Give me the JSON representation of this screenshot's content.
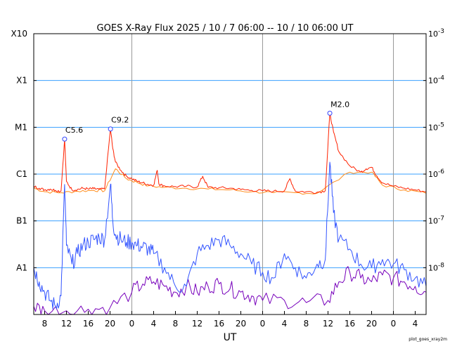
{
  "chart_data": {
    "type": "line",
    "title": "GOES X-Ray Flux   2025 / 10 /  7   06:00 -- 10 / 10   06:00   UT",
    "xlabel": "UT",
    "credit": "plot_goes_xray2m",
    "x_start": "2025-10-07T06:00",
    "x_end": "2025-10-10T06:00",
    "x_ticks": [
      {
        "label": "8",
        "t": "2025-10-07T08:00"
      },
      {
        "label": "12",
        "t": "2025-10-07T12:00"
      },
      {
        "label": "16",
        "t": "2025-10-07T16:00"
      },
      {
        "label": "20",
        "t": "2025-10-07T20:00"
      },
      {
        "label": "0",
        "t": "2025-10-08T00:00"
      },
      {
        "label": "4",
        "t": "2025-10-08T04:00"
      },
      {
        "label": "8",
        "t": "2025-10-08T08:00"
      },
      {
        "label": "12",
        "t": "2025-10-08T12:00"
      },
      {
        "label": "16",
        "t": "2025-10-08T16:00"
      },
      {
        "label": "20",
        "t": "2025-10-08T20:00"
      },
      {
        "label": "0",
        "t": "2025-10-09T00:00"
      },
      {
        "label": "4",
        "t": "2025-10-09T04:00"
      },
      {
        "label": "8",
        "t": "2025-10-09T08:00"
      },
      {
        "label": "12",
        "t": "2025-10-09T12:00"
      },
      {
        "label": "16",
        "t": "2025-10-09T16:00"
      },
      {
        "label": "20",
        "t": "2025-10-09T20:00"
      },
      {
        "label": "0",
        "t": "2025-10-10T00:00"
      },
      {
        "label": "4",
        "t": "2025-10-10T04:00"
      }
    ],
    "day_boundaries": [
      "2025-10-08T00:00",
      "2025-10-09T00:00",
      "2025-10-10T00:00"
    ],
    "y_scale": "log",
    "ylim": [
      1e-09,
      0.001
    ],
    "y_class_ticks": [
      {
        "label": "X10",
        "value": 0.001
      },
      {
        "label": "X1",
        "value": 0.0001
      },
      {
        "label": "M1",
        "value": 1e-05
      },
      {
        "label": "C1",
        "value": 1e-06
      },
      {
        "label": "B1",
        "value": 1e-07
      },
      {
        "label": "A1",
        "value": 1e-08
      }
    ],
    "y_right_ticks": [
      {
        "base": "10",
        "exp": "-3",
        "value": 0.001
      },
      {
        "base": "10",
        "exp": "-4",
        "value": 0.0001
      },
      {
        "base": "10",
        "exp": "-5",
        "value": 1e-05
      },
      {
        "base": "10",
        "exp": "-6",
        "value": 1e-06
      },
      {
        "base": "10",
        "exp": "-7",
        "value": 1e-07
      },
      {
        "base": "10",
        "exp": "-8",
        "value": 1e-08
      }
    ],
    "colors": {
      "long_primary": "#ff2200",
      "long_secondary": "#ff8c1a",
      "short_primary": "#3355ff",
      "short_secondary": "#7700bb",
      "hgrid": "#3aa0ff",
      "vgrid": "#999999",
      "marker": "#3344ff"
    },
    "annotations": [
      {
        "label": "C5.6",
        "t": "2025-10-07T11:40",
        "value": 5.6e-06
      },
      {
        "label": "C9.2",
        "t": "2025-10-07T20:05",
        "value": 9.2e-06
      },
      {
        "label": "M2.0",
        "t": "2025-10-09T12:20",
        "value": 2e-05
      }
    ],
    "series": [
      {
        "role": "long_primary",
        "kind": "long",
        "points": [
          [
            "2025-10-07T06:00",
            5.5e-07
          ],
          [
            "2025-10-07T07:00",
            5e-07
          ],
          [
            "2025-10-07T08:00",
            4.6e-07
          ],
          [
            "2025-10-07T09:00",
            4.8e-07
          ],
          [
            "2025-10-07T10:00",
            4.5e-07
          ],
          [
            "2025-10-07T11:00",
            4.3e-07
          ],
          [
            "2025-10-07T11:40",
            5.6e-06
          ],
          [
            "2025-10-07T12:00",
            7e-07
          ],
          [
            "2025-10-07T13:00",
            4.6e-07
          ],
          [
            "2025-10-07T14:00",
            4.7e-07
          ],
          [
            "2025-10-07T15:00",
            5e-07
          ],
          [
            "2025-10-07T16:00",
            4.8e-07
          ],
          [
            "2025-10-07T17:00",
            4.9e-07
          ],
          [
            "2025-10-07T18:00",
            4.7e-07
          ],
          [
            "2025-10-07T19:00",
            4.8e-07
          ],
          [
            "2025-10-07T20:05",
            9.2e-06
          ],
          [
            "2025-10-07T20:30",
            3.5e-06
          ],
          [
            "2025-10-07T21:00",
            1.8e-06
          ],
          [
            "2025-10-07T22:00",
            1.2e-06
          ],
          [
            "2025-10-07T23:00",
            9e-07
          ],
          [
            "2025-10-08T00:00",
            8e-07
          ],
          [
            "2025-10-08T01:00",
            7e-07
          ],
          [
            "2025-10-08T02:00",
            6.5e-07
          ],
          [
            "2025-10-08T03:00",
            6e-07
          ],
          [
            "2025-10-08T04:00",
            5.8e-07
          ],
          [
            "2025-10-08T04:40",
            1.2e-06
          ],
          [
            "2025-10-08T05:00",
            6e-07
          ],
          [
            "2025-10-08T06:00",
            5.6e-07
          ],
          [
            "2025-10-08T08:00",
            5.4e-07
          ],
          [
            "2025-10-08T10:00",
            5.5e-07
          ],
          [
            "2025-10-08T12:00",
            5.3e-07
          ],
          [
            "2025-10-08T13:00",
            9e-07
          ],
          [
            "2025-10-08T14:00",
            5.2e-07
          ],
          [
            "2025-10-08T16:00",
            5.1e-07
          ],
          [
            "2025-10-08T18:00",
            5e-07
          ],
          [
            "2025-10-08T20:00",
            4.7e-07
          ],
          [
            "2025-10-08T22:00",
            4.5e-07
          ],
          [
            "2025-10-09T00:00",
            4.4e-07
          ],
          [
            "2025-10-09T02:00",
            4.3e-07
          ],
          [
            "2025-10-09T04:00",
            4.4e-07
          ],
          [
            "2025-10-09T05:00",
            8e-07
          ],
          [
            "2025-10-09T06:00",
            4.3e-07
          ],
          [
            "2025-10-09T08:00",
            4.2e-07
          ],
          [
            "2025-10-09T10:00",
            4.1e-07
          ],
          [
            "2025-10-09T11:30",
            4.4e-07
          ],
          [
            "2025-10-09T12:20",
            2e-05
          ],
          [
            "2025-10-09T13:00",
            8e-06
          ],
          [
            "2025-10-09T14:00",
            3e-06
          ],
          [
            "2025-10-09T16:00",
            1.5e-06
          ],
          [
            "2025-10-09T18:00",
            1.1e-06
          ],
          [
            "2025-10-09T19:00",
            1.3e-06
          ],
          [
            "2025-10-09T20:00",
            1.4e-06
          ],
          [
            "2025-10-09T21:00",
            9e-07
          ],
          [
            "2025-10-09T22:00",
            6.5e-07
          ],
          [
            "2025-10-10T00:00",
            5.5e-07
          ],
          [
            "2025-10-10T02:00",
            5e-07
          ],
          [
            "2025-10-10T04:00",
            4.6e-07
          ],
          [
            "2025-10-10T06:00",
            4.2e-07
          ]
        ]
      },
      {
        "role": "long_secondary",
        "kind": "long",
        "points": [
          [
            "2025-10-07T06:00",
            5e-07
          ],
          [
            "2025-10-07T08:00",
            4.2e-07
          ],
          [
            "2025-10-07T11:00",
            4e-07
          ],
          [
            "2025-10-07T14:00",
            4.3e-07
          ],
          [
            "2025-10-07T17:00",
            4.5e-07
          ],
          [
            "2025-10-07T19:00",
            4.4e-07
          ],
          [
            "2025-10-07T21:00",
            1.3e-06
          ],
          [
            "2025-10-07T23:00",
            8e-07
          ],
          [
            "2025-10-08T01:00",
            6.6e-07
          ],
          [
            "2025-10-08T03:00",
            5.6e-07
          ],
          [
            "2025-10-08T06:00",
            5.2e-07
          ],
          [
            "2025-10-08T10:00",
            5e-07
          ],
          [
            "2025-10-08T14:00",
            4.8e-07
          ],
          [
            "2025-10-08T18:00",
            4.6e-07
          ],
          [
            "2025-10-08T22:00",
            4.2e-07
          ],
          [
            "2025-10-09T02:00",
            4e-07
          ],
          [
            "2025-10-09T06:00",
            4e-07
          ],
          [
            "2025-10-09T10:00",
            3.9e-07
          ],
          [
            "2025-10-09T16:00",
            1.1e-06
          ],
          [
            "2025-10-09T20:00",
            1.1e-06
          ],
          [
            "2025-10-09T22:00",
            5.8e-07
          ],
          [
            "2025-10-10T02:00",
            4.6e-07
          ],
          [
            "2025-10-10T06:00",
            3.9e-07
          ]
        ]
      },
      {
        "role": "short_primary",
        "kind": "short",
        "points": [
          [
            "2025-10-07T06:00",
            1e-08
          ],
          [
            "2025-10-07T07:00",
            5e-09
          ],
          [
            "2025-10-07T08:00",
            3e-09
          ],
          [
            "2025-10-07T09:00",
            2e-09
          ],
          [
            "2025-10-07T10:00",
            1.5e-09
          ],
          [
            "2025-10-07T11:00",
            2.5e-09
          ],
          [
            "2025-10-07T11:40",
            6e-07
          ],
          [
            "2025-10-07T12:00",
            3e-08
          ],
          [
            "2025-10-07T13:00",
            1.2e-08
          ],
          [
            "2025-10-07T14:00",
            2e-08
          ],
          [
            "2025-10-07T15:00",
            3e-08
          ],
          [
            "2025-10-07T16:00",
            3.5e-08
          ],
          [
            "2025-10-07T17:00",
            4e-08
          ],
          [
            "2025-10-07T18:00",
            4.5e-08
          ],
          [
            "2025-10-07T19:00",
            4e-08
          ],
          [
            "2025-10-07T20:05",
            6e-07
          ],
          [
            "2025-10-07T20:30",
            1e-07
          ],
          [
            "2025-10-07T21:00",
            5e-08
          ],
          [
            "2025-10-07T22:00",
            4e-08
          ],
          [
            "2025-10-07T23:00",
            3.5e-08
          ],
          [
            "2025-10-08T00:00",
            3.5e-08
          ],
          [
            "2025-10-08T01:00",
            3e-08
          ],
          [
            "2025-10-08T02:00",
            2.8e-08
          ],
          [
            "2025-10-08T03:00",
            2.5e-08
          ],
          [
            "2025-10-08T04:00",
            2e-08
          ],
          [
            "2025-10-08T06:00",
            1e-08
          ],
          [
            "2025-10-08T08:00",
            4e-09
          ],
          [
            "2025-10-08T10:00",
            4e-09
          ],
          [
            "2025-10-08T12:00",
            2e-08
          ],
          [
            "2025-10-08T14:00",
            3e-08
          ],
          [
            "2025-10-08T16:00",
            4e-08
          ],
          [
            "2025-10-08T18:00",
            3e-08
          ],
          [
            "2025-10-08T20:00",
            2e-08
          ],
          [
            "2025-10-08T22:00",
            1.2e-08
          ],
          [
            "2025-10-09T00:00",
            8e-09
          ],
          [
            "2025-10-09T02:00",
            6e-09
          ],
          [
            "2025-10-09T04:00",
            2e-08
          ],
          [
            "2025-10-09T06:00",
            1e-08
          ],
          [
            "2025-10-09T08:00",
            6e-09
          ],
          [
            "2025-10-09T10:00",
            1.2e-08
          ],
          [
            "2025-10-09T11:30",
            1.5e-08
          ],
          [
            "2025-10-09T12:20",
            1.8e-06
          ],
          [
            "2025-10-09T13:00",
            1.5e-07
          ],
          [
            "2025-10-09T14:00",
            4e-08
          ],
          [
            "2025-10-09T16:00",
            2.5e-08
          ],
          [
            "2025-10-09T18:00",
            1.2e-08
          ],
          [
            "2025-10-09T20:00",
            1e-08
          ],
          [
            "2025-10-09T22:00",
            1.5e-08
          ],
          [
            "2025-10-10T00:00",
            1.2e-08
          ],
          [
            "2025-10-10T02:00",
            9e-09
          ],
          [
            "2025-10-10T04:00",
            6e-09
          ],
          [
            "2025-10-10T06:00",
            4e-09
          ]
        ]
      },
      {
        "role": "short_secondary",
        "kind": "short",
        "points": [
          [
            "2025-10-07T06:00",
            1.5e-09
          ],
          [
            "2025-10-07T08:00",
            1.2e-09
          ],
          [
            "2025-10-07T12:00",
            1.2e-09
          ],
          [
            "2025-10-07T16:00",
            1.3e-09
          ],
          [
            "2025-10-07T20:00",
            1.4e-09
          ],
          [
            "2025-10-08T00:00",
            3e-09
          ],
          [
            "2025-10-08T02:00",
            4.5e-09
          ],
          [
            "2025-10-08T04:00",
            5e-09
          ],
          [
            "2025-10-08T06:00",
            4e-09
          ],
          [
            "2025-10-08T08:00",
            3e-09
          ],
          [
            "2025-10-08T10:00",
            4e-09
          ],
          [
            "2025-10-08T12:00",
            3e-09
          ],
          [
            "2025-10-08T14:00",
            4e-09
          ],
          [
            "2025-10-08T16:00",
            4.5e-09
          ],
          [
            "2025-10-08T18:00",
            3.5e-09
          ],
          [
            "2025-10-08T20:00",
            3e-09
          ],
          [
            "2025-10-08T22:00",
            2.5e-09
          ],
          [
            "2025-10-09T00:00",
            2e-09
          ],
          [
            "2025-10-09T04:00",
            2e-09
          ],
          [
            "2025-10-09T08:00",
            1.8e-09
          ],
          [
            "2025-10-09T12:00",
            2e-09
          ],
          [
            "2025-10-09T14:00",
            5e-09
          ],
          [
            "2025-10-09T16:00",
            8e-09
          ],
          [
            "2025-10-09T18:00",
            6e-09
          ],
          [
            "2025-10-09T20:00",
            5e-09
          ],
          [
            "2025-10-09T22:00",
            7e-09
          ],
          [
            "2025-10-10T00:00",
            6e-09
          ],
          [
            "2025-10-10T02:00",
            5e-09
          ],
          [
            "2025-10-10T04:00",
            4e-09
          ],
          [
            "2025-10-10T06:00",
            3e-09
          ]
        ]
      }
    ]
  }
}
